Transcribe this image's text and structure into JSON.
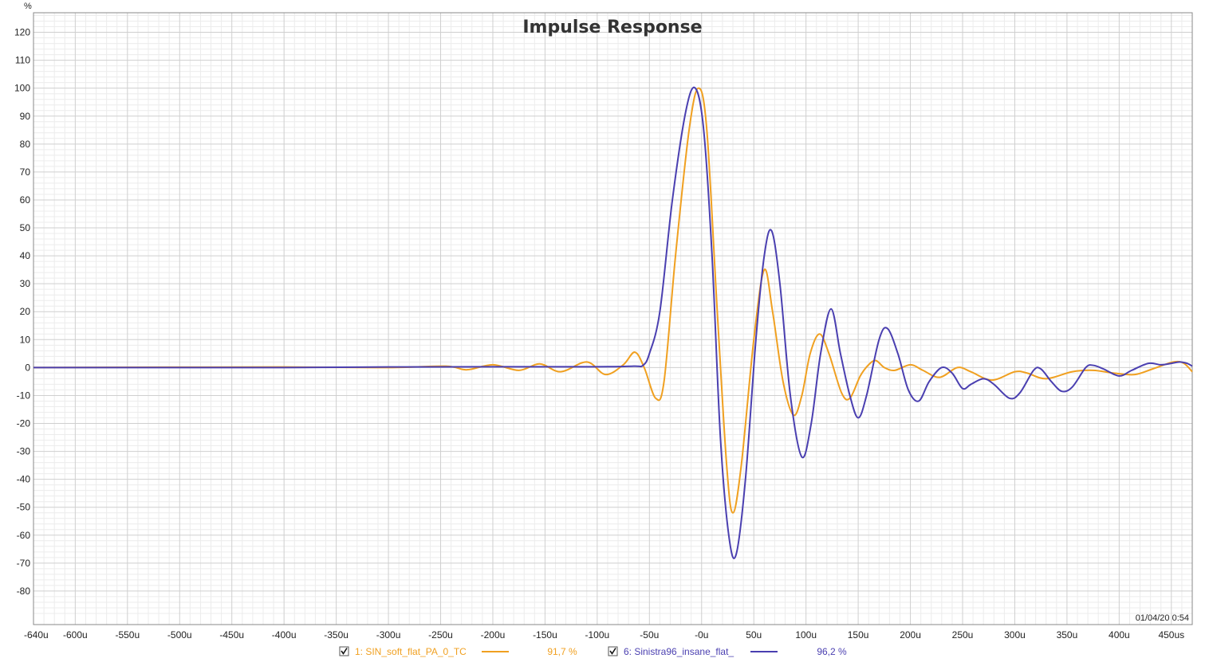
{
  "chart_data": {
    "type": "line",
    "title": "Impulse Response",
    "y_unit": "%",
    "x_unit_suffix": "us",
    "xlim": [
      -640,
      470
    ],
    "ylim": [
      -92,
      127
    ],
    "grid": true,
    "x_ticks": [
      {
        "value": -640,
        "label": "-640u"
      },
      {
        "value": -600,
        "label": "-600u"
      },
      {
        "value": -550,
        "label": "-550u"
      },
      {
        "value": -500,
        "label": "-500u"
      },
      {
        "value": -450,
        "label": "-450u"
      },
      {
        "value": -400,
        "label": "-400u"
      },
      {
        "value": -350,
        "label": "-350u"
      },
      {
        "value": -300,
        "label": "-300u"
      },
      {
        "value": -250,
        "label": "-250u"
      },
      {
        "value": -200,
        "label": "-200u"
      },
      {
        "value": -150,
        "label": "-150u"
      },
      {
        "value": -100,
        "label": "-100u"
      },
      {
        "value": -50,
        "label": "-50u"
      },
      {
        "value": 0,
        "label": "-0u"
      },
      {
        "value": 50,
        "label": "50u"
      },
      {
        "value": 100,
        "label": "100u"
      },
      {
        "value": 150,
        "label": "150u"
      },
      {
        "value": 200,
        "label": "200u"
      },
      {
        "value": 250,
        "label": "250u"
      },
      {
        "value": 300,
        "label": "300u"
      },
      {
        "value": 350,
        "label": "350u"
      },
      {
        "value": 400,
        "label": "400u"
      },
      {
        "value": 450,
        "label": "450us"
      }
    ],
    "y_ticks": [
      {
        "value": 120,
        "label": "120"
      },
      {
        "value": 110,
        "label": "110"
      },
      {
        "value": 100,
        "label": "100"
      },
      {
        "value": 90,
        "label": "90"
      },
      {
        "value": 80,
        "label": "80"
      },
      {
        "value": 70,
        "label": "70"
      },
      {
        "value": 60,
        "label": "60"
      },
      {
        "value": 50,
        "label": "50"
      },
      {
        "value": 40,
        "label": "40"
      },
      {
        "value": 30,
        "label": "30"
      },
      {
        "value": 20,
        "label": "20"
      },
      {
        "value": 10,
        "label": "10"
      },
      {
        "value": 0,
        "label": "0"
      },
      {
        "value": -10,
        "label": "-10"
      },
      {
        "value": -20,
        "label": "-20"
      },
      {
        "value": -30,
        "label": "-30"
      },
      {
        "value": -40,
        "label": "-40"
      },
      {
        "value": -50,
        "label": "-50"
      },
      {
        "value": -60,
        "label": "-60"
      },
      {
        "value": -70,
        "label": "-70"
      },
      {
        "value": -80,
        "label": "-80"
      }
    ],
    "series": [
      {
        "name": "1: SIN_soft_flat_PA_0_TC",
        "color": "#f0a020",
        "legend_value": "91,7 %",
        "checked": true,
        "points": [
          [
            -640,
            0
          ],
          [
            -400,
            0.2
          ],
          [
            -300,
            0
          ],
          [
            -245,
            0.5
          ],
          [
            -225,
            -0.8
          ],
          [
            -200,
            1
          ],
          [
            -175,
            -1
          ],
          [
            -155,
            1.3
          ],
          [
            -135,
            -1.5
          ],
          [
            -110,
            2
          ],
          [
            -92,
            -2.5
          ],
          [
            -75,
            1
          ],
          [
            -64,
            5.5
          ],
          [
            -55,
            0
          ],
          [
            -44,
            -11
          ],
          [
            -36,
            -5
          ],
          [
            -25,
            40
          ],
          [
            -12,
            85
          ],
          [
            -3,
            100
          ],
          [
            5,
            85
          ],
          [
            15,
            20
          ],
          [
            24,
            -35
          ],
          [
            30,
            -52
          ],
          [
            38,
            -35
          ],
          [
            50,
            10
          ],
          [
            60,
            35
          ],
          [
            68,
            20
          ],
          [
            78,
            -5
          ],
          [
            88,
            -17
          ],
          [
            96,
            -10
          ],
          [
            104,
            5
          ],
          [
            113,
            12
          ],
          [
            122,
            5
          ],
          [
            134,
            -9
          ],
          [
            142,
            -11
          ],
          [
            152,
            -3
          ],
          [
            160,
            1
          ],
          [
            167,
            2.5
          ],
          [
            175,
            0
          ],
          [
            185,
            -1
          ],
          [
            200,
            1
          ],
          [
            212,
            -1
          ],
          [
            228,
            -3.5
          ],
          [
            245,
            0
          ],
          [
            258,
            -1.5
          ],
          [
            278,
            -4.5
          ],
          [
            300,
            -1.5
          ],
          [
            312,
            -2
          ],
          [
            330,
            -4
          ],
          [
            355,
            -1.5
          ],
          [
            375,
            -1
          ],
          [
            395,
            -2
          ],
          [
            415,
            -2.5
          ],
          [
            432,
            -0.5
          ],
          [
            452,
            2
          ],
          [
            462,
            1.5
          ],
          [
            470,
            -1.5
          ]
        ]
      },
      {
        "name": "6: Sinistra96_insane_flat_",
        "color": "#4a3fb0",
        "legend_value": "96,2 %",
        "checked": true,
        "points": [
          [
            -640,
            0
          ],
          [
            -400,
            0
          ],
          [
            -300,
            0.2
          ],
          [
            -200,
            0.3
          ],
          [
            -100,
            0.3
          ],
          [
            -65,
            0.5
          ],
          [
            -56,
            0.8
          ],
          [
            -50,
            5
          ],
          [
            -40,
            20
          ],
          [
            -28,
            60
          ],
          [
            -15,
            92
          ],
          [
            -6,
            100
          ],
          [
            2,
            85
          ],
          [
            10,
            40
          ],
          [
            18,
            -25
          ],
          [
            26,
            -60
          ],
          [
            33,
            -67
          ],
          [
            42,
            -40
          ],
          [
            52,
            10
          ],
          [
            60,
            40
          ],
          [
            67,
            49
          ],
          [
            75,
            30
          ],
          [
            85,
            -10
          ],
          [
            96,
            -32
          ],
          [
            105,
            -20
          ],
          [
            114,
            5
          ],
          [
            124,
            21
          ],
          [
            133,
            5
          ],
          [
            142,
            -10
          ],
          [
            150,
            -18
          ],
          [
            158,
            -10
          ],
          [
            170,
            10
          ],
          [
            178,
            14
          ],
          [
            188,
            5
          ],
          [
            198,
            -8
          ],
          [
            208,
            -12
          ],
          [
            218,
            -5
          ],
          [
            230,
            0
          ],
          [
            240,
            -2
          ],
          [
            250,
            -7.5
          ],
          [
            258,
            -6
          ],
          [
            270,
            -4
          ],
          [
            280,
            -6
          ],
          [
            295,
            -11
          ],
          [
            305,
            -9
          ],
          [
            318,
            -1
          ],
          [
            325,
            -0.5
          ],
          [
            335,
            -5
          ],
          [
            345,
            -8.5
          ],
          [
            355,
            -7
          ],
          [
            368,
            0
          ],
          [
            375,
            0.8
          ],
          [
            385,
            -0.5
          ],
          [
            400,
            -3
          ],
          [
            412,
            -1
          ],
          [
            428,
            1.5
          ],
          [
            440,
            1
          ],
          [
            450,
            1.5
          ],
          [
            458,
            2
          ],
          [
            465,
            1.5
          ],
          [
            470,
            0.5
          ]
        ]
      }
    ],
    "timestamp": "01/04/20 0:54"
  }
}
